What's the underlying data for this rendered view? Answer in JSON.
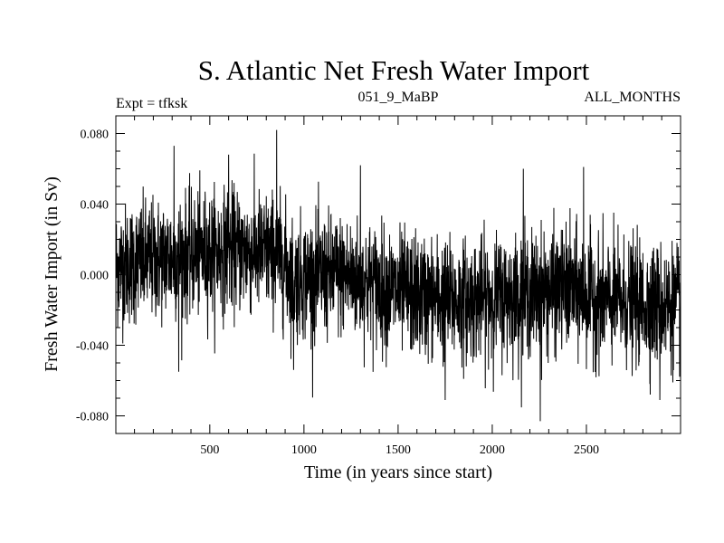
{
  "chart_data": {
    "type": "line",
    "title": "S. Atlantic Net Fresh Water Import",
    "subtitle_left": "Expt = tfksk",
    "subtitle_center": "051_9_MaBP",
    "subtitle_right": "ALL_MONTHS",
    "xlabel": "Time (in years since start)",
    "ylabel": "Fresh Water Import (in Sv)",
    "xlim": [
      1,
      3000
    ],
    "ylim": [
      -0.09,
      0.09
    ],
    "x_ticks": [
      500,
      1000,
      1500,
      2000,
      2500
    ],
    "x_tick_labels": [
      "500",
      "1000",
      "1500",
      "2000",
      "2500"
    ],
    "y_ticks": [
      0.08,
      0.04,
      0.0,
      -0.04,
      -0.08
    ],
    "y_tick_labels": [
      "0.080",
      "0.040",
      "0.000",
      "-0.040",
      "-0.080"
    ],
    "series": [
      {
        "name": "Net Fresh Water Import",
        "color": "#000000",
        "x_start": 1,
        "x_step": 1,
        "n_points": 3000,
        "mean_trend": [
          [
            1,
            0.005
          ],
          [
            300,
            0.01
          ],
          [
            600,
            0.014
          ],
          [
            850,
            0.012
          ],
          [
            950,
            -0.002
          ],
          [
            1200,
            0.0
          ],
          [
            1500,
            -0.01
          ],
          [
            1800,
            -0.015
          ],
          [
            2100,
            -0.012
          ],
          [
            2400,
            -0.008
          ],
          [
            2600,
            -0.015
          ],
          [
            3000,
            -0.018
          ]
        ],
        "noise_amplitude": 0.017,
        "notable_values": [
          {
            "x": 310,
            "y": 0.073
          },
          {
            "x": 335,
            "y": -0.055
          },
          {
            "x": 600,
            "y": 0.068
          },
          {
            "x": 855,
            "y": 0.082
          },
          {
            "x": 945,
            "y": -0.054
          },
          {
            "x": 1300,
            "y": 0.062
          },
          {
            "x": 1750,
            "y": -0.071
          },
          {
            "x": 2165,
            "y": 0.06
          },
          {
            "x": 2255,
            "y": -0.083
          },
          {
            "x": 2485,
            "y": 0.061
          },
          {
            "x": 2890,
            "y": -0.071
          }
        ]
      }
    ]
  }
}
